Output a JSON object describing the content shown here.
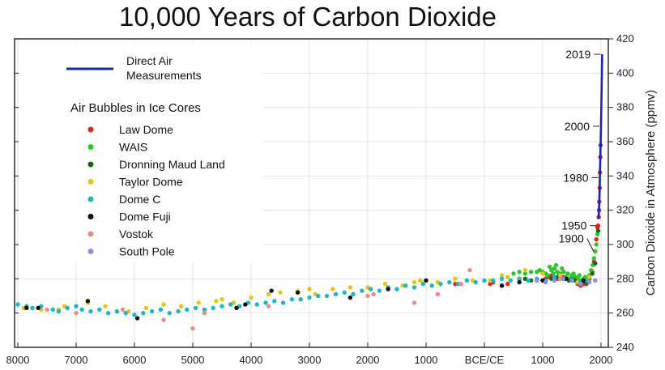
{
  "chart_data": {
    "type": "scatter",
    "title": "10,000 Years of Carbon Dioxide",
    "xlabel": "",
    "ylabel": "Carbon Dioxide in Atmosphere (ppmv)",
    "x_ticks": [
      {
        "value": -8000,
        "label": "8000"
      },
      {
        "value": -7000,
        "label": "7000"
      },
      {
        "value": -6000,
        "label": "6000"
      },
      {
        "value": -5000,
        "label": "5000"
      },
      {
        "value": -4000,
        "label": "4000"
      },
      {
        "value": -3000,
        "label": "3000"
      },
      {
        "value": -2000,
        "label": "2000"
      },
      {
        "value": -1000,
        "label": "1000"
      },
      {
        "value": 0,
        "label": "BCE/CE"
      },
      {
        "value": 1000,
        "label": "1000"
      },
      {
        "value": 2000,
        "label": "2000"
      }
    ],
    "y_ticks": [
      240,
      260,
      280,
      300,
      320,
      340,
      360,
      380,
      400,
      420
    ],
    "xlim": [
      -8000,
      2100
    ],
    "ylim": [
      240,
      420
    ],
    "y_axis_side": "right",
    "grid": true,
    "legend": {
      "line_entry": "Direct Air Measurements",
      "subheading": "Air Bubbles in Ice Cores",
      "placement": "top-left"
    },
    "series": [
      {
        "name": "Direct Air Measurements",
        "kind": "line",
        "color": "#1a24b8",
        "points": [
          [
            1958,
            315
          ],
          [
            1965,
            320
          ],
          [
            1970,
            325
          ],
          [
            1975,
            331
          ],
          [
            1980,
            339
          ],
          [
            1985,
            346
          ],
          [
            1990,
            354
          ],
          [
            1995,
            361
          ],
          [
            2000,
            369
          ],
          [
            2005,
            380
          ],
          [
            2010,
            389
          ],
          [
            2015,
            401
          ],
          [
            2019,
            411
          ]
        ]
      },
      {
        "name": "Law Dome",
        "kind": "scatter",
        "color": "#e0241b",
        "points": [
          [
            1000,
            279
          ],
          [
            1050,
            280
          ],
          [
            1100,
            281
          ],
          [
            1150,
            282
          ],
          [
            1200,
            281
          ],
          [
            1250,
            280
          ],
          [
            1300,
            281
          ],
          [
            1350,
            281
          ],
          [
            1400,
            280
          ],
          [
            1450,
            280
          ],
          [
            1500,
            281
          ],
          [
            1550,
            280
          ],
          [
            1600,
            277
          ],
          [
            1650,
            276
          ],
          [
            1700,
            277
          ],
          [
            1750,
            277
          ],
          [
            1800,
            280
          ],
          [
            1850,
            284
          ],
          [
            1880,
            290
          ],
          [
            1900,
            296
          ],
          [
            1920,
            303
          ],
          [
            1940,
            310
          ],
          [
            1950,
            311
          ],
          [
            1960,
            316
          ],
          [
            1965,
            320
          ],
          [
            1970,
            325
          ],
          [
            1978,
            333
          ],
          [
            1983,
            342
          ],
          [
            1988,
            351
          ],
          [
            1993,
            358
          ],
          [
            -500,
            277
          ],
          [
            100,
            277
          ],
          [
            150,
            278
          ],
          [
            300,
            276
          ],
          [
            400,
            277
          ],
          [
            600,
            280
          ]
        ]
      },
      {
        "name": "WAIS",
        "kind": "scatter",
        "color": "#2fc42c",
        "points": [
          [
            1000,
            284
          ],
          [
            1050,
            283
          ],
          [
            1080,
            282
          ],
          [
            1120,
            287
          ],
          [
            1150,
            285
          ],
          [
            1180,
            283
          ],
          [
            1200,
            286
          ],
          [
            1230,
            288
          ],
          [
            1250,
            284
          ],
          [
            1280,
            282
          ],
          [
            1300,
            283
          ],
          [
            1330,
            286
          ],
          [
            1360,
            284
          ],
          [
            1400,
            281
          ],
          [
            1430,
            283
          ],
          [
            1460,
            280
          ],
          [
            1500,
            282
          ],
          [
            1530,
            283
          ],
          [
            1560,
            281
          ],
          [
            1600,
            280
          ],
          [
            1630,
            282
          ],
          [
            1660,
            279
          ],
          [
            1700,
            280
          ],
          [
            1730,
            281
          ],
          [
            1760,
            280
          ],
          [
            1800,
            282
          ],
          [
            1830,
            285
          ],
          [
            1860,
            288
          ],
          [
            1880,
            292
          ],
          [
            1900,
            296
          ],
          [
            1920,
            300
          ],
          [
            1940,
            306
          ],
          [
            500,
            283
          ],
          [
            600,
            284
          ],
          [
            700,
            283
          ],
          [
            800,
            284
          ],
          [
            900,
            284
          ],
          [
            950,
            285
          ]
        ]
      },
      {
        "name": "Dronning Maud Land",
        "kind": "scatter",
        "color": "#0f6b15",
        "points": [
          [
            1050,
            279
          ],
          [
            1150,
            280
          ],
          [
            1250,
            281
          ],
          [
            1350,
            280
          ],
          [
            1450,
            279
          ],
          [
            1550,
            279
          ],
          [
            1650,
            277
          ],
          [
            1750,
            278
          ],
          [
            1850,
            283
          ],
          [
            1900,
            289
          ],
          [
            1950,
            308
          ],
          [
            800,
            279
          ],
          [
            700,
            280
          ]
        ]
      },
      {
        "name": "Taylor Dome",
        "kind": "scatter",
        "color": "#e0c814",
        "points": [
          [
            -7900,
            263
          ],
          [
            -7600,
            262
          ],
          [
            -7200,
            264
          ],
          [
            -6800,
            266
          ],
          [
            -6500,
            264
          ],
          [
            -6100,
            261
          ],
          [
            -5800,
            263
          ],
          [
            -5500,
            265
          ],
          [
            -5200,
            264
          ],
          [
            -4900,
            266
          ],
          [
            -4600,
            267
          ],
          [
            -4300,
            266
          ],
          [
            -4000,
            269
          ],
          [
            -3700,
            271
          ],
          [
            -3500,
            272
          ],
          [
            -3200,
            273
          ],
          [
            -2900,
            271
          ],
          [
            -2600,
            274
          ],
          [
            -2300,
            275
          ],
          [
            -2000,
            275
          ],
          [
            -1700,
            277
          ],
          [
            -1400,
            276
          ],
          [
            -1100,
            279
          ],
          [
            -800,
            278
          ],
          [
            -500,
            280
          ],
          [
            -200,
            279
          ],
          [
            100,
            279
          ],
          [
            400,
            281
          ],
          [
            700,
            285
          ],
          [
            1000,
            283
          ],
          [
            1300,
            282
          ],
          [
            1600,
            278
          ],
          [
            1800,
            281
          ],
          [
            -7300,
            262
          ],
          [
            -6300,
            261
          ],
          [
            -4500,
            268
          ],
          [
            -3000,
            274
          ],
          [
            -1200,
            278
          ],
          [
            300,
            282
          ]
        ]
      },
      {
        "name": "Dome C",
        "kind": "scatter",
        "color": "#1fb6c6",
        "points": [
          [
            -8000,
            265
          ],
          [
            -7850,
            264
          ],
          [
            -7750,
            263
          ],
          [
            -7600,
            264
          ],
          [
            -7400,
            262
          ],
          [
            -7300,
            261
          ],
          [
            -7150,
            263
          ],
          [
            -7000,
            264
          ],
          [
            -6900,
            262
          ],
          [
            -6750,
            261
          ],
          [
            -6600,
            262
          ],
          [
            -6450,
            260
          ],
          [
            -6300,
            261
          ],
          [
            -6150,
            260
          ],
          [
            -6000,
            259
          ],
          [
            -5850,
            260
          ],
          [
            -5700,
            261
          ],
          [
            -5550,
            262
          ],
          [
            -5400,
            260
          ],
          [
            -5250,
            261
          ],
          [
            -5100,
            262
          ],
          [
            -4950,
            263
          ],
          [
            -4800,
            262
          ],
          [
            -4650,
            263
          ],
          [
            -4500,
            264
          ],
          [
            -4350,
            265
          ],
          [
            -4200,
            264
          ],
          [
            -4050,
            266
          ],
          [
            -3900,
            265
          ],
          [
            -3750,
            266
          ],
          [
            -3600,
            267
          ],
          [
            -3450,
            266
          ],
          [
            -3300,
            268
          ],
          [
            -3150,
            268
          ],
          [
            -3000,
            269
          ],
          [
            -2850,
            270
          ],
          [
            -2700,
            270
          ],
          [
            -2550,
            271
          ],
          [
            -2400,
            272
          ],
          [
            -2250,
            271
          ],
          [
            -2100,
            273
          ],
          [
            -1950,
            274
          ],
          [
            -1800,
            273
          ],
          [
            -1650,
            275
          ],
          [
            -1500,
            274
          ],
          [
            -1350,
            276
          ],
          [
            -1200,
            275
          ],
          [
            -1050,
            277
          ],
          [
            -900,
            276
          ],
          [
            -750,
            277
          ],
          [
            -600,
            278
          ],
          [
            -450,
            277
          ],
          [
            -300,
            279
          ],
          [
            -150,
            278
          ],
          [
            0,
            279
          ],
          [
            150,
            279
          ],
          [
            300,
            280
          ],
          [
            450,
            279
          ],
          [
            600,
            280
          ],
          [
            750,
            279
          ],
          [
            900,
            280
          ],
          [
            1050,
            279
          ],
          [
            1200,
            281
          ],
          [
            1350,
            280
          ],
          [
            1500,
            279
          ],
          [
            1650,
            278
          ],
          [
            1750,
            279
          ]
        ]
      },
      {
        "name": "Dome Fuji",
        "kind": "scatter",
        "color": "#111111",
        "points": [
          [
            -7850,
            263
          ],
          [
            -7650,
            263
          ],
          [
            -6800,
            267
          ],
          [
            -5950,
            257
          ],
          [
            -4250,
            263
          ],
          [
            -4100,
            265
          ],
          [
            -3650,
            273
          ],
          [
            -3200,
            272
          ],
          [
            -2300,
            269
          ],
          [
            -1650,
            274
          ],
          [
            -1000,
            279
          ],
          [
            300,
            276
          ],
          [
            600,
            278
          ],
          [
            1000,
            279
          ],
          [
            1400,
            280
          ],
          [
            1700,
            279
          ]
        ]
      },
      {
        "name": "Vostok",
        "kind": "scatter",
        "color": "#ee8a86",
        "points": [
          [
            -7000,
            260
          ],
          [
            -5500,
            256
          ],
          [
            -5000,
            251
          ],
          [
            -3700,
            264
          ],
          [
            -2000,
            270
          ],
          [
            -1900,
            271
          ],
          [
            -1200,
            266
          ],
          [
            -800,
            271
          ],
          [
            -400,
            277
          ],
          [
            -250,
            285
          ],
          [
            1300,
            280
          ],
          [
            -7500,
            262
          ],
          [
            -6200,
            262
          ],
          [
            -4800,
            260
          ]
        ]
      },
      {
        "name": "South Pole",
        "kind": "scatter",
        "color": "#8a8ee6",
        "points": [
          [
            900,
            279
          ],
          [
            1050,
            278
          ],
          [
            1200,
            279
          ],
          [
            1350,
            280
          ],
          [
            1500,
            279
          ],
          [
            1650,
            277
          ],
          [
            1800,
            278
          ],
          [
            1900,
            279
          ]
        ]
      }
    ],
    "annotations": [
      {
        "label": "2019",
        "year": 2019,
        "value": 411
      },
      {
        "label": "2000",
        "year": 2000,
        "value": 369
      },
      {
        "label": "1980",
        "year": 1980,
        "value": 339
      },
      {
        "label": "1950",
        "year": 1950,
        "value": 311
      },
      {
        "label": "1900",
        "year": 1900,
        "value": 296
      }
    ]
  }
}
